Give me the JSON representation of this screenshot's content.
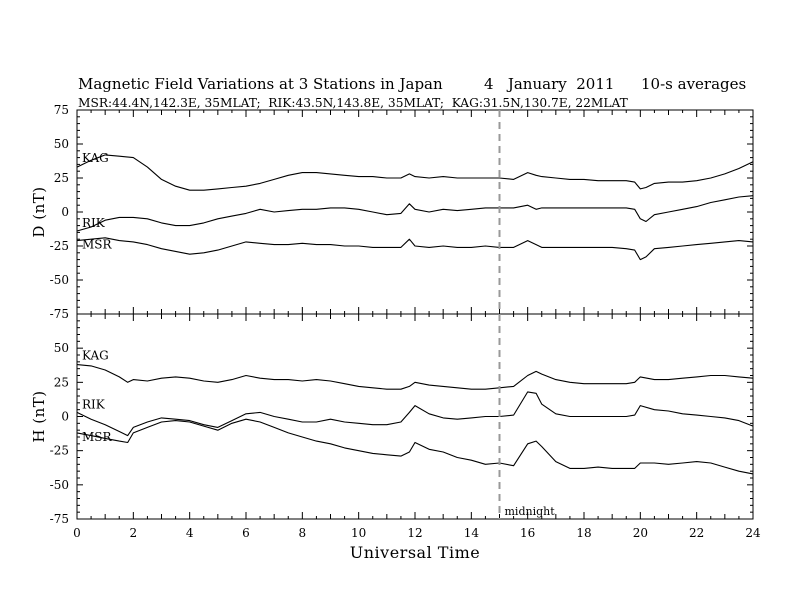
{
  "chart_data": [
    {
      "type": "line",
      "title_parts": [
        "Magnetic Field Variations at 3 Stations in Japan",
        "4   January  2011",
        "10-s averages"
      ],
      "subtitle": "MSR:44.4N,142.3E, 35MLAT;  RIK:43.5N,143.8E, 35MLAT;  KAG:31.5N,130.7E, 22MLAT",
      "xlabel": "Universal Time",
      "ylabel": "D (nT)",
      "xlim": [
        0,
        24
      ],
      "ylim": [
        -75,
        75
      ],
      "xticks": [
        0,
        2,
        4,
        6,
        8,
        10,
        12,
        14,
        16,
        18,
        20,
        22,
        24
      ],
      "yticks": [
        75,
        50,
        25,
        0,
        -25,
        -50,
        -75
      ],
      "marker": {
        "x": 15,
        "label": "midnight"
      },
      "series": [
        {
          "name": "KAG",
          "x": [
            0,
            0.5,
            1,
            1.5,
            2,
            2.5,
            3,
            3.5,
            4,
            4.5,
            5,
            5.5,
            6,
            6.5,
            7,
            7.5,
            8,
            8.5,
            9,
            9.5,
            10,
            10.5,
            11,
            11.5,
            11.8,
            12,
            12.5,
            13,
            13.5,
            14,
            14.5,
            15,
            15.5,
            16,
            16.3,
            16.5,
            17,
            17.5,
            18,
            18.5,
            19,
            19.5,
            19.8,
            20,
            20.2,
            20.5,
            21,
            21.5,
            22,
            22.5,
            23,
            23.5,
            24
          ],
          "values": [
            33,
            38,
            42,
            41,
            40,
            33,
            24,
            19,
            16,
            16,
            17,
            18,
            19,
            21,
            24,
            27,
            29,
            29,
            28,
            27,
            26,
            26,
            25,
            25,
            28,
            26,
            25,
            26,
            25,
            25,
            25,
            25,
            24,
            29,
            27,
            26,
            25,
            24,
            24,
            23,
            23,
            23,
            22,
            17,
            18,
            21,
            22,
            22,
            23,
            25,
            28,
            32,
            37
          ]
        },
        {
          "name": "RIK",
          "x": [
            0,
            0.5,
            1,
            1.5,
            2,
            2.5,
            3,
            3.5,
            4,
            4.5,
            5,
            5.5,
            6,
            6.5,
            7,
            7.5,
            8,
            8.5,
            9,
            9.5,
            10,
            10.5,
            11,
            11.5,
            11.8,
            12,
            12.5,
            13,
            13.5,
            14,
            14.5,
            15,
            15.5,
            16,
            16.3,
            16.5,
            17,
            17.5,
            18,
            18.5,
            19,
            19.5,
            19.8,
            20,
            20.2,
            20.5,
            21,
            21.5,
            22,
            22.5,
            23,
            23.5,
            24
          ],
          "values": [
            -14,
            -11,
            -6,
            -4,
            -4,
            -5,
            -8,
            -10,
            -10,
            -8,
            -5,
            -3,
            -1,
            2,
            0,
            1,
            2,
            2,
            3,
            3,
            2,
            0,
            -2,
            -1,
            6,
            2,
            0,
            2,
            1,
            2,
            3,
            3,
            3,
            5,
            2,
            3,
            3,
            3,
            3,
            3,
            3,
            3,
            2,
            -5,
            -7,
            -2,
            0,
            2,
            4,
            7,
            9,
            11,
            12
          ]
        },
        {
          "name": "MSR",
          "x": [
            0,
            0.5,
            1,
            1.5,
            2,
            2.5,
            3,
            3.5,
            4,
            4.5,
            5,
            5.5,
            6,
            6.5,
            7,
            7.5,
            8,
            8.5,
            9,
            9.5,
            10,
            10.5,
            11,
            11.5,
            11.8,
            12,
            12.5,
            13,
            13.5,
            14,
            14.5,
            15,
            15.5,
            16,
            16.3,
            16.5,
            17,
            17.5,
            18,
            18.5,
            19,
            19.5,
            19.8,
            20,
            20.2,
            20.5,
            21,
            21.5,
            22,
            22.5,
            23,
            23.5,
            24
          ],
          "values": [
            -21,
            -20,
            -19,
            -21,
            -22,
            -24,
            -27,
            -29,
            -31,
            -30,
            -28,
            -25,
            -22,
            -23,
            -24,
            -24,
            -23,
            -24,
            -24,
            -25,
            -25,
            -26,
            -26,
            -26,
            -20,
            -25,
            -26,
            -25,
            -26,
            -26,
            -25,
            -26,
            -26,
            -21,
            -24,
            -26,
            -26,
            -26,
            -26,
            -26,
            -26,
            -27,
            -28,
            -35,
            -33,
            -27,
            -26,
            -25,
            -24,
            -23,
            -22,
            -21,
            -22
          ]
        }
      ],
      "series_labels": [
        "KAG",
        "RIK",
        "MSR"
      ]
    },
    {
      "type": "line",
      "xlabel": "Universal Time",
      "ylabel": "H (nT)",
      "xlim": [
        0,
        24
      ],
      "ylim": [
        -75,
        75
      ],
      "xticks": [
        0,
        2,
        4,
        6,
        8,
        10,
        12,
        14,
        16,
        18,
        20,
        22,
        24
      ],
      "yticks": [
        75,
        50,
        25,
        0,
        -25,
        -50,
        -75
      ],
      "marker": {
        "x": 15,
        "label": "midnight"
      },
      "series": [
        {
          "name": "KAG",
          "x": [
            0,
            0.5,
            1,
            1.5,
            1.8,
            2,
            2.5,
            3,
            3.5,
            4,
            4.5,
            5,
            5.5,
            6,
            6.5,
            7,
            7.5,
            8,
            8.5,
            9,
            9.5,
            10,
            10.5,
            11,
            11.5,
            11.8,
            12,
            12.5,
            13,
            13.5,
            14,
            14.5,
            15,
            15.5,
            16,
            16.3,
            16.5,
            17,
            17.5,
            18,
            18.5,
            19,
            19.5,
            19.8,
            20,
            20.5,
            21,
            21.5,
            22,
            22.5,
            23,
            23.5,
            24
          ],
          "values": [
            38,
            37,
            34,
            29,
            25,
            27,
            26,
            28,
            29,
            28,
            26,
            25,
            27,
            30,
            28,
            27,
            27,
            26,
            27,
            26,
            24,
            22,
            21,
            20,
            20,
            22,
            25,
            23,
            22,
            21,
            20,
            20,
            21,
            22,
            30,
            33,
            31,
            27,
            25,
            24,
            24,
            24,
            24,
            25,
            29,
            27,
            27,
            28,
            29,
            30,
            30,
            29,
            28
          ]
        },
        {
          "name": "RIK",
          "x": [
            0,
            0.5,
            1,
            1.5,
            1.8,
            2,
            2.5,
            3,
            3.5,
            4,
            4.5,
            5,
            5.5,
            6,
            6.5,
            7,
            7.5,
            8,
            8.5,
            9,
            9.5,
            10,
            10.5,
            11,
            11.5,
            11.8,
            12,
            12.5,
            13,
            13.5,
            14,
            14.5,
            15,
            15.5,
            16,
            16.3,
            16.5,
            17,
            17.5,
            18,
            18.5,
            19,
            19.5,
            19.8,
            20,
            20.5,
            21,
            21.5,
            22,
            22.5,
            23,
            23.5,
            24
          ],
          "values": [
            3,
            -2,
            -6,
            -11,
            -14,
            -8,
            -4,
            -1,
            -2,
            -3,
            -6,
            -8,
            -3,
            2,
            3,
            0,
            -2,
            -4,
            -4,
            -2,
            -4,
            -5,
            -6,
            -6,
            -4,
            3,
            8,
            2,
            -1,
            -2,
            -1,
            0,
            0,
            1,
            18,
            17,
            9,
            2,
            0,
            0,
            0,
            0,
            0,
            1,
            8,
            5,
            4,
            2,
            1,
            0,
            -1,
            -3,
            -7
          ]
        },
        {
          "name": "MSR",
          "x": [
            0,
            0.5,
            1,
            1.5,
            1.8,
            2,
            2.5,
            3,
            3.5,
            4,
            4.5,
            5,
            5.5,
            6,
            6.5,
            7,
            7.5,
            8,
            8.5,
            9,
            9.5,
            10,
            10.5,
            11,
            11.5,
            11.8,
            12,
            12.5,
            13,
            13.5,
            14,
            14.5,
            15,
            15.5,
            16,
            16.3,
            16.5,
            17,
            17.5,
            18,
            18.5,
            19,
            19.5,
            19.8,
            20,
            20.5,
            21,
            21.5,
            22,
            22.5,
            23,
            23.5,
            24
          ],
          "values": [
            -12,
            -14,
            -16,
            -18,
            -19,
            -12,
            -8,
            -4,
            -3,
            -4,
            -7,
            -10,
            -5,
            -2,
            -4,
            -8,
            -12,
            -15,
            -18,
            -20,
            -23,
            -25,
            -27,
            -28,
            -29,
            -26,
            -19,
            -24,
            -26,
            -30,
            -32,
            -35,
            -34,
            -36,
            -20,
            -18,
            -22,
            -33,
            -38,
            -38,
            -37,
            -38,
            -38,
            -38,
            -34,
            -34,
            -35,
            -34,
            -33,
            -34,
            -37,
            -40,
            -42
          ]
        }
      ],
      "series_labels": [
        "KAG",
        "RIK",
        "MSR"
      ]
    }
  ]
}
